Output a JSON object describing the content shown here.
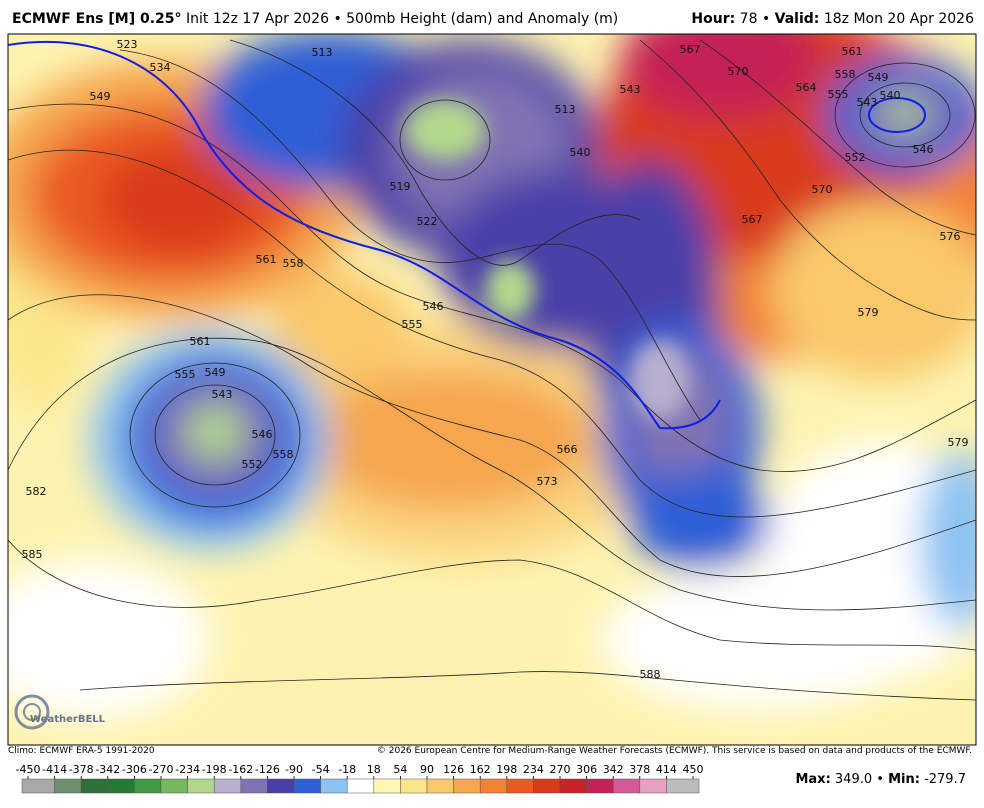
{
  "header": {
    "model": "ECMWF Ens [M] 0.25°",
    "description": "Init 12z 17 Apr 2026 • 500mb Height (dam) and Anomaly (m)",
    "hour_label": "Hour:",
    "hour": "78",
    "separator": "•",
    "valid_label": "Valid:",
    "valid": "18z Mon 20 Apr 2026"
  },
  "map": {
    "contour_labels": [
      523,
      534,
      549,
      513,
      561,
      558,
      561,
      555,
      549,
      543,
      546,
      552,
      558,
      582,
      585,
      519,
      522,
      546,
      555,
      566,
      573,
      588,
      567,
      570,
      564,
      561,
      558,
      555,
      549,
      543,
      540,
      546,
      552,
      570,
      567,
      576,
      579,
      579,
      540,
      543,
      513
    ],
    "logo_text": "WeatherBELL"
  },
  "footer": {
    "climo": "Climo: ECMWF ERA-5 1991-2020",
    "copyright": "© 2026 European Centre for Medium-Range Weather Forecasts (ECMWF). This service is based on data and products of the ECMWF."
  },
  "colorbar": {
    "ticks": [
      -450,
      -414,
      -378,
      -342,
      -306,
      -270,
      -234,
      -198,
      -162,
      -126,
      -90,
      -54,
      -18,
      18,
      54,
      90,
      126,
      162,
      198,
      234,
      270,
      306,
      342,
      378,
      414,
      450
    ],
    "colors": [
      "#a8a8a8",
      "#6e8e6e",
      "#2f6f38",
      "#237a33",
      "#3f9945",
      "#76b85f",
      "#b3d88c",
      "#b7b0cf",
      "#8173b3",
      "#4a3fa8",
      "#2f5fd6",
      "#8cc3f2",
      "#ffffff",
      "#fdf6b5",
      "#fbe68a",
      "#f9c86a",
      "#f6a64e",
      "#f28235",
      "#ea5a22",
      "#d93a1c",
      "#c6222a",
      "#c42055",
      "#d45a95",
      "#e8a0c0",
      "#bcbcbc"
    ]
  },
  "stats": {
    "max_label": "Max:",
    "max": "349.0",
    "separator": "•",
    "min_label": "Min:",
    "min": "-279.7"
  }
}
